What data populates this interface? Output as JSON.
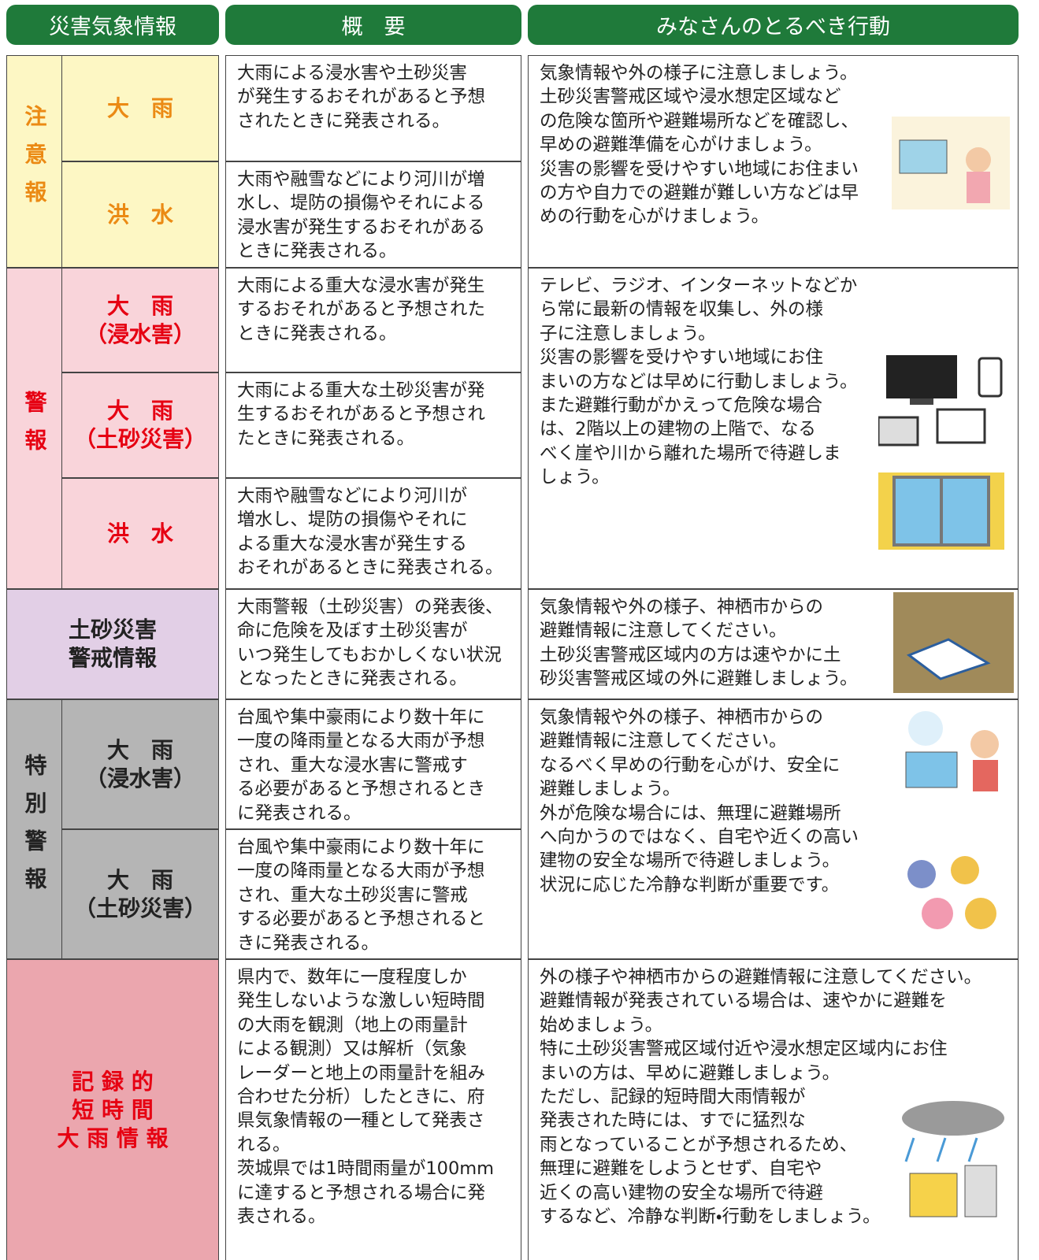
{
  "header": {
    "columns": [
      "災害気象情報",
      "概　要",
      "みなさんのとるべき行動"
    ]
  },
  "groups": [
    {
      "label": "注意報",
      "rows": [
        {
          "name": [
            "大　雨"
          ],
          "summary": [
            "大雨による浸水害や土砂災害",
            "が発生するおそれがあると予想",
            "されたときに発表される。"
          ]
        },
        {
          "name": [
            "洪　水"
          ],
          "summary": [
            "大雨や融雪などにより河川が増",
            "水し、堤防の損傷やそれによる",
            "浸水害が発生するおそれがある",
            "ときに発表される。"
          ]
        }
      ],
      "action": [
        "気象情報や外の様子に注意しましょう。",
        "土砂災害警戒区域や浸水想定区域など",
        "の危険な箇所や避難場所などを確認し、",
        "早めの避難準備を心がけましょう。",
        "災害の影響を受けやすい地域にお住まい",
        "の方や自力での避難が難しい方などは早",
        "めの行動を心がけましょう。"
      ]
    },
    {
      "label": "警報",
      "rows": [
        {
          "name": [
            "大　雨",
            "（浸水害）"
          ],
          "summary": [
            "大雨による重大な浸水害が発生",
            "するおそれがあると予想された",
            "ときに発表される。"
          ]
        },
        {
          "name": [
            "大　雨",
            "（土砂災害）"
          ],
          "summary": [
            "大雨による重大な土砂災害が発",
            "生するおそれがあると予想され",
            "たときに発表される。"
          ]
        },
        {
          "name": [
            "洪　水"
          ],
          "summary": [
            "大雨や融雪などにより河川が",
            "増水し、堤防の損傷やそれに",
            "よる重大な浸水害が発生する",
            "おそれがあるときに発表される。"
          ]
        }
      ],
      "action": [
        "テレビ、ラジオ、インターネットなどか",
        "ら常に最新の情報を収集し、外の様",
        "子に注意しましょう。",
        "災害の影響を受けやすい地域にお住",
        "まいの方などは早めに行動しましょう。",
        "また避難行動がかえって危険な場合",
        "は、2階以上の建物の上階で、なる",
        "べく崖や川から離れた場所で待避しま",
        "しょう。"
      ]
    },
    {
      "rows": [
        {
          "name": [
            "土砂災害",
            "警戒情報"
          ],
          "summary": [
            "大雨警報（土砂災害）の発表後、",
            "命に危険を及ぼす土砂災害が",
            "いつ発生してもおかしくない状況",
            "となったときに発表される。"
          ]
        }
      ],
      "action": [
        "気象情報や外の様子、神栖市からの",
        "避難情報に注意してください。",
        "土砂災害警戒区域内の方は速やかに土",
        "砂災害警戒区域の外に避難しましょう。"
      ]
    },
    {
      "label": "特別警報",
      "rows": [
        {
          "name": [
            "大　雨",
            "（浸水害）"
          ],
          "summary": [
            "台風や集中豪雨により数十年に",
            "一度の降雨量となる大雨が予想",
            "され、重大な浸水害に警戒す",
            "る必要があると予想されるとき",
            "に発表される。"
          ]
        },
        {
          "name": [
            "大　雨",
            "（土砂災害）"
          ],
          "summary": [
            "台風や集中豪雨により数十年に",
            "一度の降雨量となる大雨が予想",
            "され、重大な土砂災害に警戒",
            "する必要があると予想されると",
            "きに発表される。"
          ]
        }
      ],
      "action": [
        "気象情報や外の様子、神栖市からの",
        "避難情報に注意してください。",
        "なるべく早めの行動を心がけ、安全に",
        "避難しましょう。",
        "外が危険な場合には、無理に避難場所",
        "へ向かうのではなく、自宅や近くの高い",
        "建物の安全な場所で待避しましょう。",
        "状況に応じた冷静な判断が重要です。"
      ]
    },
    {
      "rows": [
        {
          "name": [
            "記 録 的",
            "短 時 間",
            "大 雨 情 報"
          ],
          "summary": [
            "県内で、数年に一度程度しか",
            "発生しないような激しい短時間",
            "の大雨を観測（地上の雨量計",
            "による観測）又は解析（気象",
            "レーダーと地上の雨量計を組み",
            "合わせた分析）したときに、府",
            "県気象情報の一種として発表さ",
            "れる。",
            "茨城県では1時間雨量が100mm",
            "に達すると予想される場合に発",
            "表される。"
          ]
        }
      ],
      "action": [
        "外の様子や神栖市からの避難情報に注意してください。",
        "避難情報が発表されている場合は、速やかに避難を",
        "始めましょう。",
        "特に土砂災害警戒区域付近や浸水想定区域内にお住",
        "まいの方は、早めに避難しましょう。",
        "ただし、記録的短時間大雨情報が",
        "発表された時には、すでに猛烈な",
        "雨となっていることが予想されるため、",
        "無理に避難をしようとせず、自宅や",
        "近くの高い建物の安全な場所で待避",
        "するなど、冷静な判断・行動をしましょう。"
      ]
    }
  ]
}
